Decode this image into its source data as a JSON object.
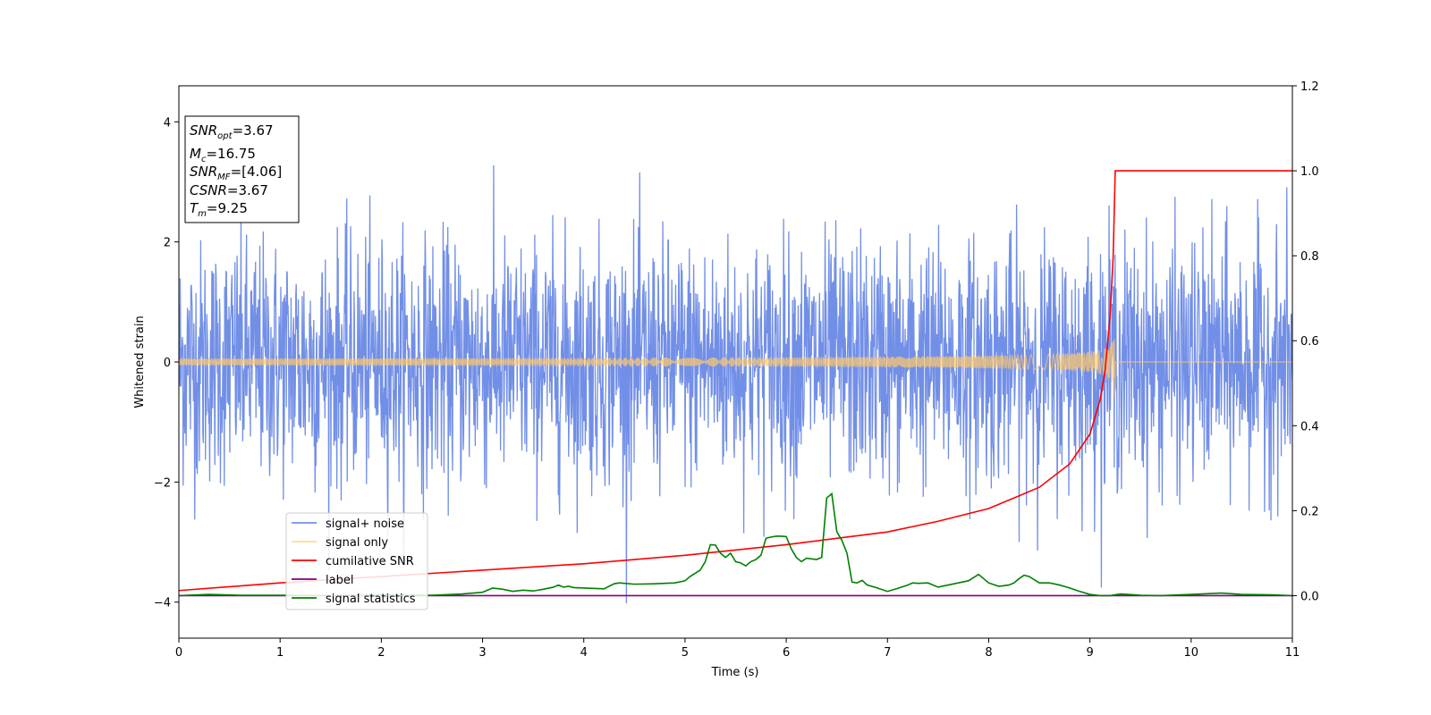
{
  "chart_data": {
    "type": "line",
    "xlabel": "Time (s)",
    "ylabel": "Whitened strain",
    "xlim": [
      0,
      11
    ],
    "ylim": [
      -4.6,
      4.6
    ],
    "y2lim": [
      -0.1,
      1.2
    ],
    "x_ticks": [
      "0",
      "1",
      "2",
      "3",
      "4",
      "5",
      "6",
      "7",
      "8",
      "9",
      "10",
      "11"
    ],
    "y_ticks": [
      "−4",
      "−2",
      "0",
      "2",
      "4"
    ],
    "y2_ticks": [
      "0.0",
      "0.2",
      "0.4",
      "0.6",
      "0.8",
      "1.0",
      "1.2"
    ],
    "grid": false,
    "legend_position": "lower-left",
    "stats_box": {
      "snr_opt": "3.67",
      "mc": "16.75",
      "snr_mf": "[4.06]",
      "csnr": "3.67",
      "tm": "9.25"
    },
    "series": [
      {
        "name": "signal+ noise",
        "color": "#6a89e6",
        "axis": "left",
        "style": "noise",
        "description_values": {
          "std": 1.0,
          "x_range": [
            0,
            11
          ]
        }
      },
      {
        "name": "signal only",
        "color": "#ffc96b",
        "axis": "left",
        "style": "chirp",
        "peak_time": 9.25,
        "peak_amplitude": 0.6
      },
      {
        "name": "cumilative SNR",
        "color": "#ff0000",
        "axis": "right",
        "x": [
          0,
          1,
          2,
          3,
          4,
          5,
          6,
          7,
          7.5,
          8,
          8.5,
          8.8,
          9.0,
          9.1,
          9.15,
          9.2,
          9.23,
          9.25,
          11
        ],
        "y": [
          0.012,
          0.03,
          0.045,
          0.06,
          0.075,
          0.095,
          0.12,
          0.15,
          0.175,
          0.205,
          0.255,
          0.31,
          0.38,
          0.46,
          0.53,
          0.66,
          0.8,
          1.0,
          1.0
        ]
      },
      {
        "name": "label",
        "color": "#800080",
        "axis": "right",
        "x": [
          0,
          11
        ],
        "y": [
          0,
          0
        ]
      },
      {
        "name": "signal statistics",
        "color": "#008000",
        "axis": "right",
        "x": [
          0,
          0.3,
          0.6,
          1,
          1.5,
          2,
          2.5,
          2.8,
          3.0,
          3.1,
          3.2,
          3.3,
          3.4,
          3.5,
          3.6,
          3.7,
          3.75,
          3.8,
          3.85,
          3.9,
          4.0,
          4.2,
          4.3,
          4.35,
          4.5,
          4.7,
          4.9,
          5.0,
          5.05,
          5.15,
          5.2,
          5.25,
          5.3,
          5.35,
          5.4,
          5.45,
          5.5,
          5.55,
          5.6,
          5.65,
          5.7,
          5.75,
          5.8,
          5.85,
          5.9,
          5.95,
          6.0,
          6.05,
          6.1,
          6.15,
          6.2,
          6.3,
          6.35,
          6.4,
          6.45,
          6.5,
          6.55,
          6.6,
          6.65,
          6.7,
          6.75,
          6.8,
          6.9,
          7.0,
          7.1,
          7.2,
          7.25,
          7.3,
          7.4,
          7.5,
          7.6,
          7.7,
          7.8,
          7.9,
          8.0,
          8.1,
          8.2,
          8.25,
          8.3,
          8.35,
          8.4,
          8.5,
          8.6,
          8.7,
          8.8,
          8.9,
          9.0,
          9.1,
          9.2,
          9.3,
          9.5,
          9.7,
          10.0,
          10.3,
          10.5,
          10.8,
          11.0
        ],
        "y": [
          0.0,
          0.003,
          0.001,
          0.001,
          0.0,
          0.002,
          0.001,
          0.004,
          0.008,
          0.018,
          0.015,
          0.01,
          0.013,
          0.011,
          0.015,
          0.02,
          0.025,
          0.02,
          0.022,
          0.019,
          0.018,
          0.016,
          0.028,
          0.03,
          0.027,
          0.028,
          0.03,
          0.035,
          0.045,
          0.06,
          0.08,
          0.12,
          0.119,
          0.1,
          0.09,
          0.1,
          0.08,
          0.077,
          0.07,
          0.08,
          0.085,
          0.095,
          0.135,
          0.138,
          0.14,
          0.14,
          0.139,
          0.11,
          0.09,
          0.08,
          0.088,
          0.085,
          0.09,
          0.23,
          0.24,
          0.15,
          0.13,
          0.1,
          0.032,
          0.03,
          0.036,
          0.025,
          0.018,
          0.01,
          0.017,
          0.025,
          0.03,
          0.029,
          0.03,
          0.02,
          0.025,
          0.03,
          0.035,
          0.05,
          0.03,
          0.022,
          0.025,
          0.03,
          0.04,
          0.048,
          0.045,
          0.03,
          0.03,
          0.025,
          0.018,
          0.01,
          0.003,
          0.0,
          0.0,
          0.004,
          0.001,
          0.0,
          0.003,
          0.006,
          0.003,
          0.002,
          0.0
        ]
      }
    ]
  }
}
